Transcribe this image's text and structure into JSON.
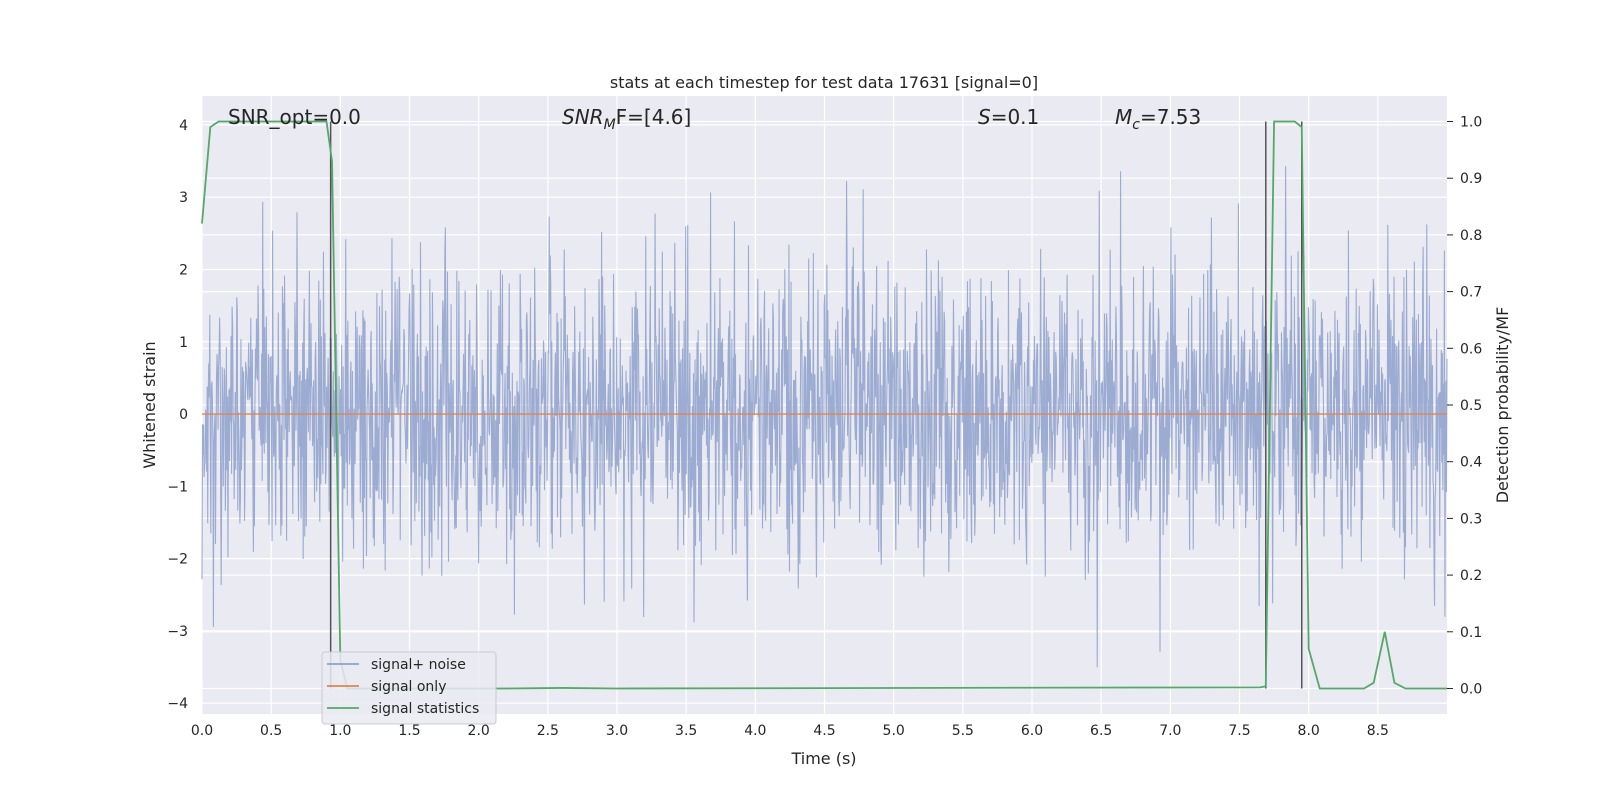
{
  "chart_data": {
    "type": "line",
    "title": "stats at each timestep for test data 17631 [signal=0]",
    "xlabel": "Time (s)",
    "ylabel": "Whitened strain",
    "y2label": "Detection probability/MF",
    "xlim": [
      0,
      9.0
    ],
    "ylim": [
      -4.15,
      4.4
    ],
    "y2lim": [
      -0.045,
      1.045
    ],
    "x_ticks": [
      0.0,
      0.5,
      1.0,
      1.5,
      2.0,
      2.5,
      3.0,
      3.5,
      4.0,
      4.5,
      5.0,
      5.5,
      6.0,
      6.5,
      7.0,
      7.5,
      8.0,
      8.5
    ],
    "y_ticks": [
      4,
      3,
      2,
      1,
      0,
      -1,
      -2,
      -3,
      -4
    ],
    "y_tick_labels": [
      "4",
      "3",
      "2",
      "1",
      "0",
      "−1",
      "−2",
      "−3",
      "−4"
    ],
    "y2_ticks": [
      1.0,
      0.9,
      0.8,
      0.7,
      0.6,
      0.5,
      0.4,
      0.3,
      0.2,
      0.1,
      0.0
    ],
    "y2_tick_labels": [
      "1.0",
      "0.9",
      "0.8",
      "0.7",
      "0.6",
      "0.5",
      "0.4",
      "0.3",
      "0.2",
      "0.1",
      "0.0"
    ],
    "grid": true,
    "legend_position": "bottom-left",
    "annotations": {
      "snr_opt": "SNR_opt=0.0",
      "snr_mf_base": "SNR",
      "snr_mf_sub": "M",
      "snr_mf_rest": "F=[4.6]",
      "s_sym": "S",
      "s_rest": "=0.1",
      "mc_base": "M",
      "mc_sub": "c",
      "mc_rest": "=7.53"
    },
    "vertical_markers": [
      0.93,
      7.69,
      7.95
    ],
    "series": [
      {
        "name": "signal+ noise",
        "color": "#8da0cb",
        "axis": "left",
        "description_type": "noise",
        "amplitude_sigma": 1.0,
        "duration": 9.0
      },
      {
        "name": "signal only",
        "color": "#dd8452",
        "axis": "left",
        "x": [
          0.0,
          9.0
        ],
        "y": [
          0.0,
          0.0
        ]
      },
      {
        "name": "signal statistics",
        "color": "#55a868",
        "axis": "right",
        "x": [
          0.0,
          0.06,
          0.12,
          0.9,
          0.94,
          1.0,
          1.05,
          2.2,
          2.6,
          3.0,
          7.65,
          7.69,
          7.75,
          7.9,
          7.95,
          8.0,
          8.08,
          8.3,
          8.4,
          8.47,
          8.55,
          8.62,
          8.7,
          9.0
        ],
        "y": [
          0.82,
          0.99,
          1.0,
          1.0,
          0.93,
          0.05,
          0.0,
          0.0,
          0.001,
          0.0,
          0.002,
          0.004,
          1.0,
          1.0,
          0.99,
          0.07,
          0.0,
          0.0,
          0.0,
          0.01,
          0.1,
          0.01,
          0.0,
          0.0
        ]
      }
    ]
  }
}
